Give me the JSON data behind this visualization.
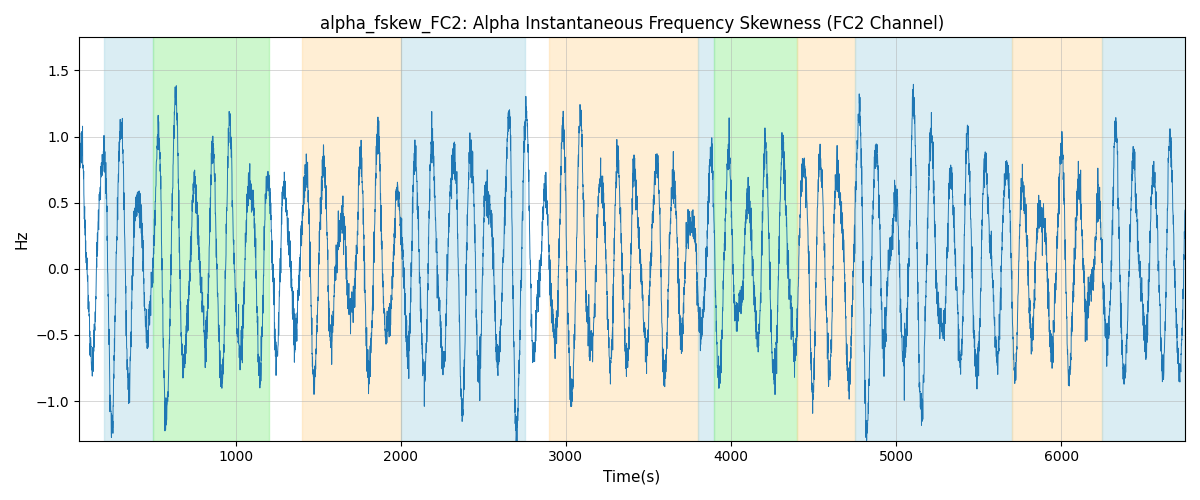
{
  "title": "alpha_fskew_FC2: Alpha Instantaneous Frequency Skewness (FC2 Channel)",
  "xlabel": "Time(s)",
  "ylabel": "Hz",
  "ylim": [
    -1.3,
    1.75
  ],
  "xlim": [
    50,
    6750
  ],
  "line_color": "#1f77b4",
  "line_width": 0.7,
  "bg_color": "#ffffff",
  "grid_color": "#b0b0b0",
  "seed": 12345,
  "n_points": 6700,
  "x_start": 50,
  "x_end": 6750,
  "colored_bands": [
    {
      "xmin": 200,
      "xmax": 500,
      "color": "#add8e6",
      "alpha": 0.45
    },
    {
      "xmin": 500,
      "xmax": 1200,
      "color": "#90ee90",
      "alpha": 0.45
    },
    {
      "xmin": 1400,
      "xmax": 2000,
      "color": "#ffdaa0",
      "alpha": 0.45
    },
    {
      "xmin": 2000,
      "xmax": 2750,
      "color": "#add8e6",
      "alpha": 0.45
    },
    {
      "xmin": 2900,
      "xmax": 3800,
      "color": "#ffdaa0",
      "alpha": 0.45
    },
    {
      "xmin": 3800,
      "xmax": 3900,
      "color": "#add8e6",
      "alpha": 0.45
    },
    {
      "xmin": 3900,
      "xmax": 4400,
      "color": "#90ee90",
      "alpha": 0.45
    },
    {
      "xmin": 4400,
      "xmax": 4750,
      "color": "#ffdaa0",
      "alpha": 0.45
    },
    {
      "xmin": 4750,
      "xmax": 5700,
      "color": "#add8e6",
      "alpha": 0.45
    },
    {
      "xmin": 5700,
      "xmax": 6250,
      "color": "#ffdaa0",
      "alpha": 0.45
    },
    {
      "xmin": 6250,
      "xmax": 6750,
      "color": "#add8e6",
      "alpha": 0.45
    }
  ],
  "yticks": [
    -1.0,
    -0.5,
    0.0,
    0.5,
    1.0,
    1.5
  ],
  "xticks": [
    1000,
    2000,
    3000,
    4000,
    5000,
    6000
  ]
}
